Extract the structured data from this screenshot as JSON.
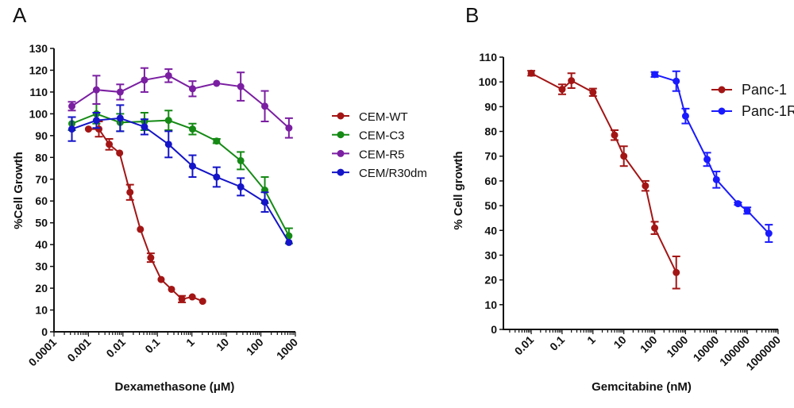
{
  "chart_data": [
    {
      "type": "line",
      "panel_label": "A",
      "xlabel": "Dexamethasone (μM)",
      "ylabel": "%Cell Growth",
      "xscale": "log",
      "xlim": [
        0.0001,
        1000
      ],
      "ylim": [
        0,
        130
      ],
      "xticks": [
        "0.0001",
        "0.001",
        "0.01",
        "0.1",
        "1",
        "10",
        "100",
        "1000"
      ],
      "yticks": [
        0,
        10,
        20,
        30,
        40,
        50,
        60,
        70,
        80,
        90,
        100,
        110,
        120,
        130
      ],
      "grid": false,
      "legend_position": "right",
      "error_bars": true,
      "series": [
        {
          "name": "CEM-WT",
          "color": "#a31515",
          "x": [
            0.001,
            0.002,
            0.004,
            0.008,
            0.016,
            0.032,
            0.064,
            0.128,
            0.256,
            0.512,
            1.024,
            2.048
          ],
          "y": [
            93,
            93,
            86,
            82,
            64,
            47,
            34,
            24,
            19.5,
            15,
            16,
            14
          ],
          "err": [
            0,
            3.5,
            2.5,
            0,
            3.5,
            0,
            2,
            0,
            0,
            1.5,
            0,
            0
          ]
        },
        {
          "name": "CEM-C3",
          "color": "#158a15",
          "x": [
            0.00033,
            0.0017,
            0.0083,
            0.042,
            0.21,
            1.04,
            5.2,
            26,
            130,
            650
          ],
          "y": [
            95.5,
            100,
            96,
            96.5,
            97,
            93,
            87.5,
            78.5,
            65,
            44
          ],
          "err": [
            3,
            4.5,
            4,
            4,
            4.5,
            2.5,
            1,
            4,
            6,
            3.5
          ]
        },
        {
          "name": "CEM-R5",
          "color": "#7b1fa2",
          "x": [
            0.00033,
            0.0017,
            0.0083,
            0.042,
            0.21,
            1.04,
            5.2,
            26,
            130,
            650
          ],
          "y": [
            103.5,
            111,
            110,
            115.5,
            117.5,
            111.5,
            114,
            112.5,
            103.5,
            93.5
          ],
          "err": [
            2,
            6.5,
            3.5,
            5.5,
            3,
            3.5,
            0,
            6.5,
            7,
            4.5
          ]
        },
        {
          "name": "CEM/R30dm",
          "color": "#1414c8",
          "x": [
            0.00033,
            0.0017,
            0.0083,
            0.042,
            0.21,
            1.04,
            5.2,
            26,
            130,
            650
          ],
          "y": [
            93,
            97,
            98,
            94,
            86,
            76,
            71,
            66.5,
            59.5,
            41
          ],
          "err": [
            5.5,
            3.5,
            6,
            3.5,
            6,
            5,
            4.5,
            4,
            4.5,
            0
          ]
        }
      ]
    },
    {
      "type": "line",
      "panel_label": "B",
      "xlabel": "Gemcitabine (nM)",
      "ylabel": "% Cell growth",
      "xscale": "log",
      "xlim": [
        0.00125,
        1000000
      ],
      "ylim": [
        0,
        110
      ],
      "xticks": [
        "0.01",
        "0.1",
        "1",
        "10",
        "100",
        "1000",
        "10000",
        "100000",
        "1000000"
      ],
      "yticks": [
        0,
        10,
        20,
        30,
        40,
        50,
        60,
        70,
        80,
        90,
        100,
        110
      ],
      "grid": false,
      "legend_position": "top-right",
      "error_bars": true,
      "series": [
        {
          "name": "Panc-1",
          "color": "#a31515",
          "x": [
            0.01,
            0.1,
            0.2,
            1,
            5,
            10,
            50,
            100,
            500
          ],
          "y": [
            103.5,
            97,
            100.5,
            95.8,
            78.5,
            70,
            58,
            41,
            23
          ],
          "err": [
            1,
            2,
            3,
            1.5,
            2,
            4,
            2,
            2.5,
            6.5
          ]
        },
        {
          "name": "Panc-1R",
          "color": "#1a1aff",
          "x": [
            100,
            500,
            1000,
            5000,
            10000,
            50000,
            100000,
            500000
          ],
          "y": [
            103,
            100.3,
            86.2,
            68.7,
            60.5,
            50.8,
            48,
            38.8
          ],
          "err": [
            1,
            4,
            3,
            2.7,
            3.3,
            0.5,
            1.3,
            3.5
          ]
        }
      ]
    }
  ]
}
